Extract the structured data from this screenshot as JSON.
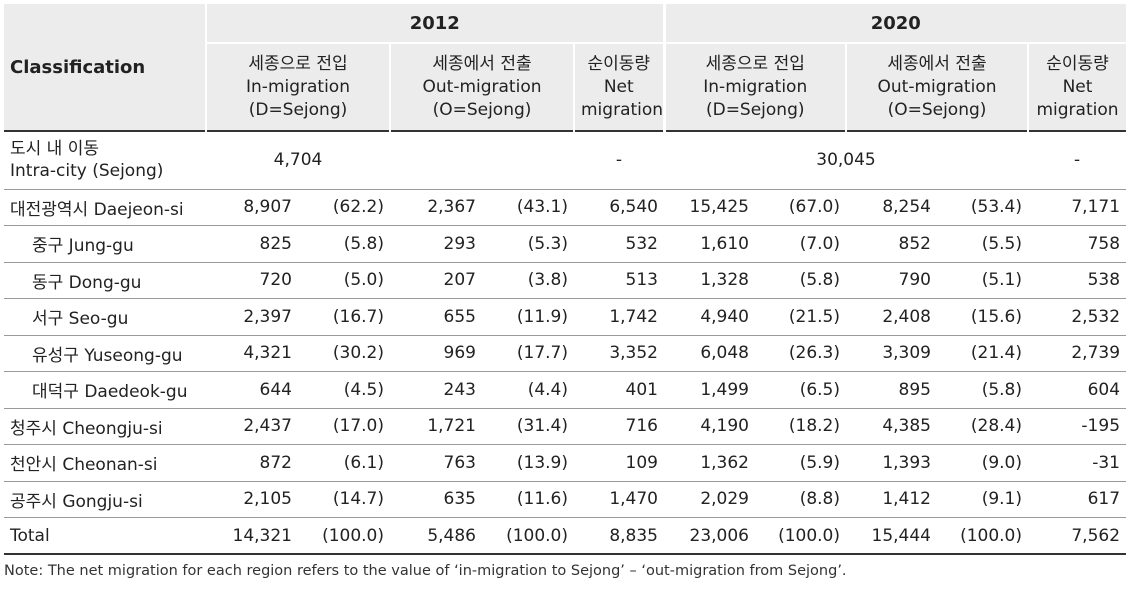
{
  "header": {
    "classification": "Classification",
    "year_2012": "2012",
    "year_2020": "2020",
    "columns": {
      "in_ko": "세종으로 전입",
      "in_en": "In-migration",
      "in_code": "(D=Sejong)",
      "out_ko": "세종에서 전출",
      "out_en": "Out-migration",
      "out_code": "(O=Sejong)",
      "net_ko": "순이동량",
      "net_en1": "Net",
      "net_en2": "migration"
    }
  },
  "intra": {
    "name_ko": "도시 내 이동",
    "name_en": "Intra-city (Sejong)",
    "v2012": "4,704",
    "net2012": "-",
    "v2020": "30,045",
    "net2020": "-"
  },
  "rows": [
    {
      "name": "대전광역시 Daejeon-si",
      "in12": "8,907",
      "in12p": "(62.2)",
      "out12": "2,367",
      "out12p": "(43.1)",
      "net12": "6,540",
      "in20": "15,425",
      "in20p": "(67.0)",
      "out20": "8,254",
      "out20p": "(53.4)",
      "net20": "7,171"
    },
    {
      "name": "중구 Jung-gu",
      "in12": "825",
      "in12p": "(5.8)",
      "out12": "293",
      "out12p": "(5.3)",
      "net12": "532",
      "in20": "1,610",
      "in20p": "(7.0)",
      "out20": "852",
      "out20p": "(5.5)",
      "net20": "758"
    },
    {
      "name": "동구 Dong-gu",
      "in12": "720",
      "in12p": "(5.0)",
      "out12": "207",
      "out12p": "(3.8)",
      "net12": "513",
      "in20": "1,328",
      "in20p": "(5.8)",
      "out20": "790",
      "out20p": "(5.1)",
      "net20": "538"
    },
    {
      "name": "서구 Seo-gu",
      "in12": "2,397",
      "in12p": "(16.7)",
      "out12": "655",
      "out12p": "(11.9)",
      "net12": "1,742",
      "in20": "4,940",
      "in20p": "(21.5)",
      "out20": "2,408",
      "out20p": "(15.6)",
      "net20": "2,532"
    },
    {
      "name": "유성구 Yuseong-gu",
      "in12": "4,321",
      "in12p": "(30.2)",
      "out12": "969",
      "out12p": "(17.7)",
      "net12": "3,352",
      "in20": "6,048",
      "in20p": "(26.3)",
      "out20": "3,309",
      "out20p": "(21.4)",
      "net20": "2,739"
    },
    {
      "name": "대덕구 Daedeok-gu",
      "in12": "644",
      "in12p": "(4.5)",
      "out12": "243",
      "out12p": "(4.4)",
      "net12": "401",
      "in20": "1,499",
      "in20p": "(6.5)",
      "out20": "895",
      "out20p": "(5.8)",
      "net20": "604"
    },
    {
      "name": "청주시 Cheongju-si",
      "in12": "2,437",
      "in12p": "(17.0)",
      "out12": "1,721",
      "out12p": "(31.4)",
      "net12": "716",
      "in20": "4,190",
      "in20p": "(18.2)",
      "out20": "4,385",
      "out20p": "(28.4)",
      "net20": "-195"
    },
    {
      "name": "천안시 Cheonan-si",
      "in12": "872",
      "in12p": "(6.1)",
      "out12": "763",
      "out12p": "(13.9)",
      "net12": "109",
      "in20": "1,362",
      "in20p": "(5.9)",
      "out20": "1,393",
      "out20p": "(9.0)",
      "net20": "-31"
    },
    {
      "name": "공주시 Gongju-si",
      "in12": "2,105",
      "in12p": "(14.7)",
      "out12": "635",
      "out12p": "(11.6)",
      "net12": "1,470",
      "in20": "2,029",
      "in20p": "(8.8)",
      "out20": "1,412",
      "out20p": "(9.1)",
      "net20": "617"
    },
    {
      "name": "Total",
      "in12": "14,321",
      "in12p": "(100.0)",
      "out12": "5,486",
      "out12p": "(100.0)",
      "net12": "8,835",
      "in20": "23,006",
      "in20p": "(100.0)",
      "out20": "15,444",
      "out20p": "(100.0)",
      "net20": "7,562"
    }
  ],
  "note": "Note: The net migration for each region refers to the value of ‘in-migration to Sejong’ – ‘out-migration from Sejong’."
}
